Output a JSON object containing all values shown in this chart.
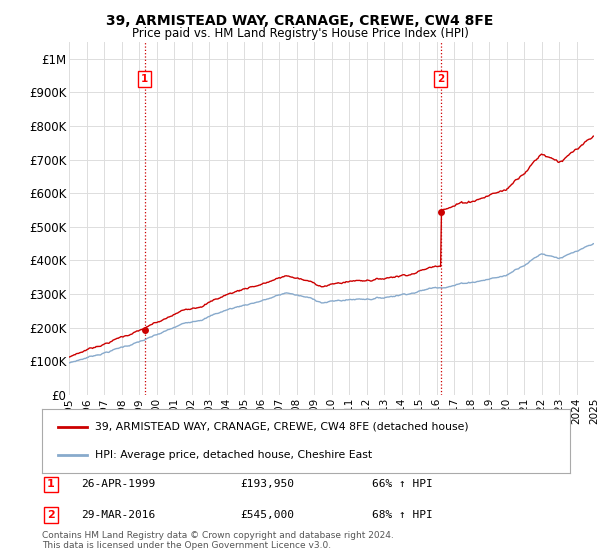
{
  "title": "39, ARMISTEAD WAY, CRANAGE, CREWE, CW4 8FE",
  "subtitle": "Price paid vs. HM Land Registry's House Price Index (HPI)",
  "ylim": [
    0,
    1050000
  ],
  "yticks": [
    0,
    100000,
    200000,
    300000,
    400000,
    500000,
    600000,
    700000,
    800000,
    900000,
    1000000
  ],
  "ytick_labels": [
    "£0",
    "£100K",
    "£200K",
    "£300K",
    "£400K",
    "£500K",
    "£600K",
    "£700K",
    "£800K",
    "£900K",
    "£1M"
  ],
  "xmin_year": 1995,
  "xmax_year": 2025,
  "xtick_years": [
    1995,
    1996,
    1997,
    1998,
    1999,
    2000,
    2001,
    2002,
    2003,
    2004,
    2005,
    2006,
    2007,
    2008,
    2009,
    2010,
    2011,
    2012,
    2013,
    2014,
    2015,
    2016,
    2017,
    2018,
    2019,
    2020,
    2021,
    2022,
    2023,
    2024,
    2025
  ],
  "property_color": "#cc0000",
  "hpi_color": "#88aacc",
  "vline_color": "#cc0000",
  "purchase1_year": 1999.32,
  "purchase1_price": 193950,
  "purchase2_year": 2016.24,
  "purchase2_price": 545000,
  "legend_property": "39, ARMISTEAD WAY, CRANAGE, CREWE, CW4 8FE (detached house)",
  "legend_hpi": "HPI: Average price, detached house, Cheshire East",
  "ann1_label": "1",
  "ann1_date": "26-APR-1999",
  "ann1_price": "£193,950",
  "ann1_pct": "66% ↑ HPI",
  "ann2_label": "2",
  "ann2_date": "29-MAR-2016",
  "ann2_price": "£545,000",
  "ann2_pct": "68% ↑ HPI",
  "footer": "Contains HM Land Registry data © Crown copyright and database right 2024.\nThis data is licensed under the Open Government Licence v3.0.",
  "background_color": "#ffffff",
  "grid_color": "#dddddd"
}
